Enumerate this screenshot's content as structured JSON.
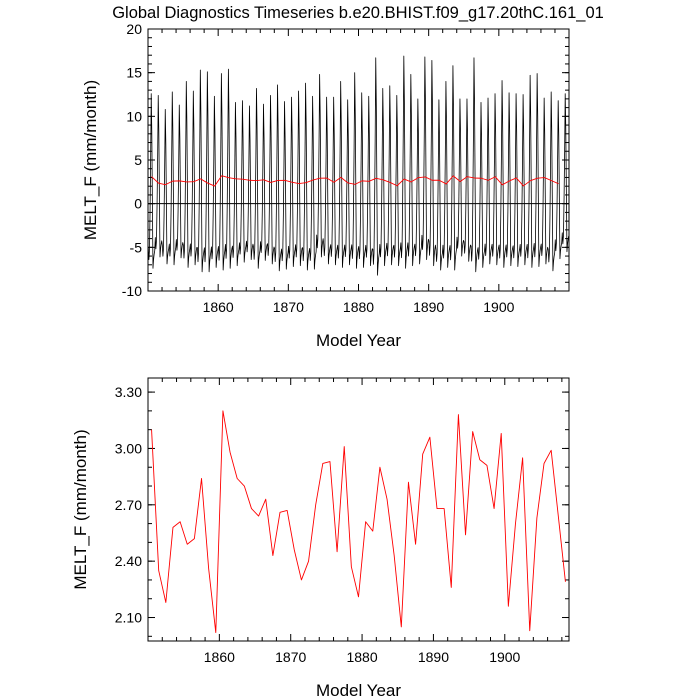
{
  "title": "Global Diagnostics Timeseries b.e20.BHIST.f09_g17.20thC.161_01",
  "chart_data": [
    {
      "id": "monthly",
      "type": "line",
      "xlabel": "Model Year",
      "ylabel": "MELT_F (mm/month)",
      "xlim": [
        1850,
        1910
      ],
      "ylim": [
        -10,
        20
      ],
      "xticks": [
        1860,
        1870,
        1880,
        1890,
        1900
      ],
      "yticks": [
        -10,
        -5,
        0,
        5,
        10,
        15,
        20
      ],
      "ytick_labels": [
        "-10",
        "-5",
        "0",
        "5",
        "10",
        "15",
        "20"
      ],
      "zero_line": true,
      "series": [
        {
          "color": "#000000",
          "sampling": "monthly",
          "annual_max": [
            12.6,
            12.4,
            10.8,
            12.8,
            11.3,
            14.0,
            12.9,
            15.3,
            15.1,
            12.3,
            14.9,
            15.4,
            11.6,
            11.8,
            11.2,
            13.2,
            11.4,
            12.4,
            13.6,
            11.7,
            12.2,
            12.9,
            13.8,
            12.3,
            14.8,
            12.2,
            12.2,
            14.0,
            11.9,
            15.0,
            12.7,
            12.3,
            16.7,
            13.2,
            13.5,
            12.4,
            16.9,
            14.8,
            12.0,
            16.8,
            16.4,
            11.9,
            14.0,
            15.8,
            12.0,
            12.0,
            16.7,
            11.6,
            12.1,
            12.6,
            14.1,
            12.7,
            12.6,
            12.5,
            14.7,
            14.9,
            12.1,
            12.8,
            11.8,
            12.6
          ],
          "annual_min": [
            -7.4,
            -6.1,
            -6.9,
            -7.0,
            -6.2,
            -7.3,
            -7.0,
            -7.8,
            -7.8,
            -7.3,
            -7.6,
            -7.4,
            -7.1,
            -6.7,
            -6.4,
            -7.4,
            -6.5,
            -6.9,
            -7.7,
            -7.5,
            -7.2,
            -7.1,
            -7.6,
            -7.5,
            -6.1,
            -6.9,
            -7.0,
            -7.3,
            -7.0,
            -7.4,
            -7.3,
            -7.1,
            -8.2,
            -7.1,
            -7.0,
            -7.1,
            -7.4,
            -7.1,
            -6.9,
            -6.4,
            -7.1,
            -7.6,
            -7.3,
            -7.6,
            -6.0,
            -6.6,
            -7.8,
            -7.3,
            -6.9,
            -7.0,
            -7.3,
            -7.1,
            -7.2,
            -7.0,
            -7.3,
            -7.2,
            -6.9,
            -7.7,
            -6.3,
            -5.5
          ]
        },
        {
          "color": "#ff0000",
          "sampling": "annual",
          "x": [
            1850.5,
            1851.5,
            1852.5,
            1853.5,
            1854.5,
            1855.5,
            1856.5,
            1857.5,
            1858.5,
            1859.5,
            1860.5,
            1861.5,
            1862.5,
            1863.5,
            1864.5,
            1865.5,
            1866.5,
            1867.5,
            1868.5,
            1869.5,
            1870.5,
            1871.5,
            1872.5,
            1873.5,
            1874.5,
            1875.5,
            1876.5,
            1877.5,
            1878.5,
            1879.5,
            1880.5,
            1881.5,
            1882.5,
            1883.5,
            1884.5,
            1885.5,
            1886.5,
            1887.5,
            1888.5,
            1889.5,
            1890.5,
            1891.5,
            1892.5,
            1893.5,
            1894.5,
            1895.5,
            1896.5,
            1897.5,
            1898.5,
            1899.5,
            1900.5,
            1901.5,
            1902.5,
            1903.5,
            1904.5,
            1905.5,
            1906.5,
            1907.5,
            1908.5
          ],
          "y": [
            3.1,
            2.35,
            2.18,
            2.58,
            2.61,
            2.49,
            2.52,
            2.84,
            2.36,
            2.02,
            3.2,
            2.98,
            2.84,
            2.8,
            2.68,
            2.64,
            2.73,
            2.43,
            2.66,
            2.67,
            2.46,
            2.3,
            2.4,
            2.7,
            2.92,
            2.93,
            2.45,
            3.01,
            2.37,
            2.21,
            2.61,
            2.56,
            2.9,
            2.73,
            2.43,
            2.05,
            2.82,
            2.49,
            2.97,
            3.06,
            2.68,
            2.68,
            2.26,
            3.18,
            2.54,
            3.09,
            2.94,
            2.91,
            2.68,
            3.08,
            2.16,
            2.6,
            2.95,
            2.03,
            2.63,
            2.92,
            2.99,
            2.64,
            2.29
          ]
        }
      ]
    },
    {
      "id": "annual",
      "type": "line",
      "xlabel": "Model Year",
      "ylabel": "MELT_F (mm/month)",
      "xlim": [
        1850,
        1909
      ],
      "ylim": [
        1.975,
        3.375
      ],
      "xticks": [
        1860,
        1870,
        1880,
        1890,
        1900
      ],
      "yticks": [
        2.1,
        2.4,
        2.7,
        3.0,
        3.3
      ],
      "ytick_labels": [
        "2.10",
        "2.40",
        "2.70",
        "3.00",
        "3.30"
      ],
      "series": [
        {
          "color": "#ff0000",
          "x": [
            1850.5,
            1851.5,
            1852.5,
            1853.5,
            1854.5,
            1855.5,
            1856.5,
            1857.5,
            1858.5,
            1859.5,
            1860.5,
            1861.5,
            1862.5,
            1863.5,
            1864.5,
            1865.5,
            1866.5,
            1867.5,
            1868.5,
            1869.5,
            1870.5,
            1871.5,
            1872.5,
            1873.5,
            1874.5,
            1875.5,
            1876.5,
            1877.5,
            1878.5,
            1879.5,
            1880.5,
            1881.5,
            1882.5,
            1883.5,
            1884.5,
            1885.5,
            1886.5,
            1887.5,
            1888.5,
            1889.5,
            1890.5,
            1891.5,
            1892.5,
            1893.5,
            1894.5,
            1895.5,
            1896.5,
            1897.5,
            1898.5,
            1899.5,
            1900.5,
            1901.5,
            1902.5,
            1903.5,
            1904.5,
            1905.5,
            1906.5,
            1907.5,
            1908.5
          ],
          "y": [
            3.1,
            2.35,
            2.18,
            2.58,
            2.61,
            2.49,
            2.52,
            2.84,
            2.36,
            2.02,
            3.2,
            2.98,
            2.84,
            2.8,
            2.68,
            2.64,
            2.73,
            2.43,
            2.66,
            2.67,
            2.46,
            2.3,
            2.4,
            2.7,
            2.92,
            2.93,
            2.45,
            3.01,
            2.37,
            2.21,
            2.61,
            2.56,
            2.9,
            2.73,
            2.43,
            2.05,
            2.82,
            2.49,
            2.97,
            3.06,
            2.68,
            2.68,
            2.26,
            3.18,
            2.54,
            3.09,
            2.94,
            2.91,
            2.68,
            3.08,
            2.16,
            2.6,
            2.95,
            2.03,
            2.63,
            2.92,
            2.99,
            2.64,
            2.29
          ]
        }
      ]
    }
  ]
}
